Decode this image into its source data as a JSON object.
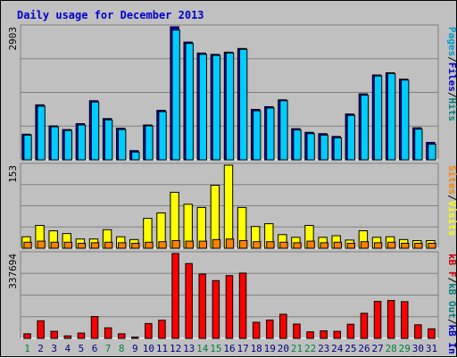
{
  "colors": {
    "background": "#c0c0c0",
    "title": "#0000cc",
    "pages": "#0099cc",
    "files": "#0000cc",
    "hits": "#008080",
    "visits": "#ffff00",
    "sites": "#ff8000",
    "kb_in": "#0000cc",
    "kb_out": "#008080",
    "kb_f": "#cc0000",
    "weekend_tick": "#008040",
    "weekday_tick": "#000080"
  },
  "chart_data": {
    "title": "Daily usage for December 2013",
    "type": "bar",
    "categories": [
      "1",
      "2",
      "3",
      "4",
      "5",
      "6",
      "7",
      "8",
      "9",
      "10",
      "11",
      "12",
      "13",
      "14",
      "15",
      "16",
      "17",
      "18",
      "19",
      "20",
      "21",
      "22",
      "23",
      "24",
      "25",
      "26",
      "27",
      "28",
      "29",
      "30",
      "31"
    ],
    "weekend_days": [
      "1",
      "7",
      "8",
      "14",
      "15",
      "21",
      "22",
      "28",
      "29"
    ],
    "panels": [
      {
        "id": "hits_files_pages",
        "max_label": "2903",
        "ylim": [
          0,
          2903
        ],
        "legend": [
          {
            "name": "Pages",
            "color": "#0099cc"
          },
          {
            "name": "/",
            "color": "#000000"
          },
          {
            "name": "Files",
            "color": "#0000cc"
          },
          {
            "name": "/",
            "color": "#000000"
          },
          {
            "name": "Hits",
            "color": "#008080"
          }
        ],
        "series": [
          {
            "name": "Hits",
            "color": "#0000cc",
            "values": [
              560,
              1200,
              740,
              660,
              790,
              1290,
              900,
              690,
              200,
              760,
              1080,
              2903,
              2570,
              2330,
              2300,
              2350,
              2430,
              1100,
              1160,
              1310,
              680,
              600,
              570,
              510,
              1000,
              1440,
              1850,
              1900,
              1760,
              700,
              380
            ]
          },
          {
            "name": "Pages",
            "color": "#00ccff",
            "values": [
              540,
              1170,
              720,
              640,
              760,
              1260,
              870,
              660,
              170,
              740,
              1050,
              2830,
              2540,
              2300,
              2280,
              2330,
              2410,
              1070,
              1130,
              1290,
              650,
              570,
              540,
              480,
              970,
              1410,
              1830,
              1880,
              1740,
              670,
              340
            ]
          }
        ]
      },
      {
        "id": "visits_sites",
        "max_label": "153",
        "ylim": [
          0,
          153
        ],
        "legend": [
          {
            "name": "Sites",
            "color": "#ff8000"
          },
          {
            "name": "/",
            "color": "#000000"
          },
          {
            "name": "Visits",
            "color": "#ffff00"
          }
        ],
        "series": [
          {
            "name": "Visits",
            "color": "#ffff00",
            "values": [
              21,
              42,
              32,
              27,
              17,
              17,
              34,
              21,
              16,
              55,
              65,
              103,
              81,
              75,
              116,
              153,
              75,
              40,
              45,
              25,
              20,
              42,
              20,
              23,
              15,
              32,
              20,
              21,
              16,
              14,
              14
            ]
          },
          {
            "name": "Sites",
            "color": "#ff8000",
            "values": [
              11,
              13,
              11,
              11,
              9,
              10,
              11,
              10,
              9,
              11,
              12,
              14,
              13,
              13,
              16,
              17,
              14,
              12,
              12,
              11,
              10,
              13,
              10,
              11,
              9,
              12,
              10,
              11,
              9,
              9,
              9
            ]
          }
        ]
      },
      {
        "id": "kbytes",
        "max_label": "337694",
        "ylim": [
          0,
          337694
        ],
        "legend": [
          {
            "name": "kB F",
            "color": "#cc0000"
          },
          {
            "name": "/",
            "color": "#000000"
          },
          {
            "name": "kB Out",
            "color": "#008080"
          },
          {
            "name": "/",
            "color": "#000000"
          },
          {
            "name": "kB In",
            "color": "#0000cc"
          }
        ],
        "series": [
          {
            "name": "kB F",
            "color": "#ff0000",
            "values": [
              18000,
              70000,
              28000,
              10000,
              21000,
              87000,
              42000,
              18000,
              5000,
              59000,
              72000,
              337694,
              298000,
              256000,
              230000,
              250000,
              260000,
              64000,
              73000,
              96000,
              57000,
              26000,
              30000,
              28000,
              56000,
              100000,
              147000,
              151000,
              146000,
              54000,
              38000
            ]
          }
        ]
      }
    ]
  }
}
